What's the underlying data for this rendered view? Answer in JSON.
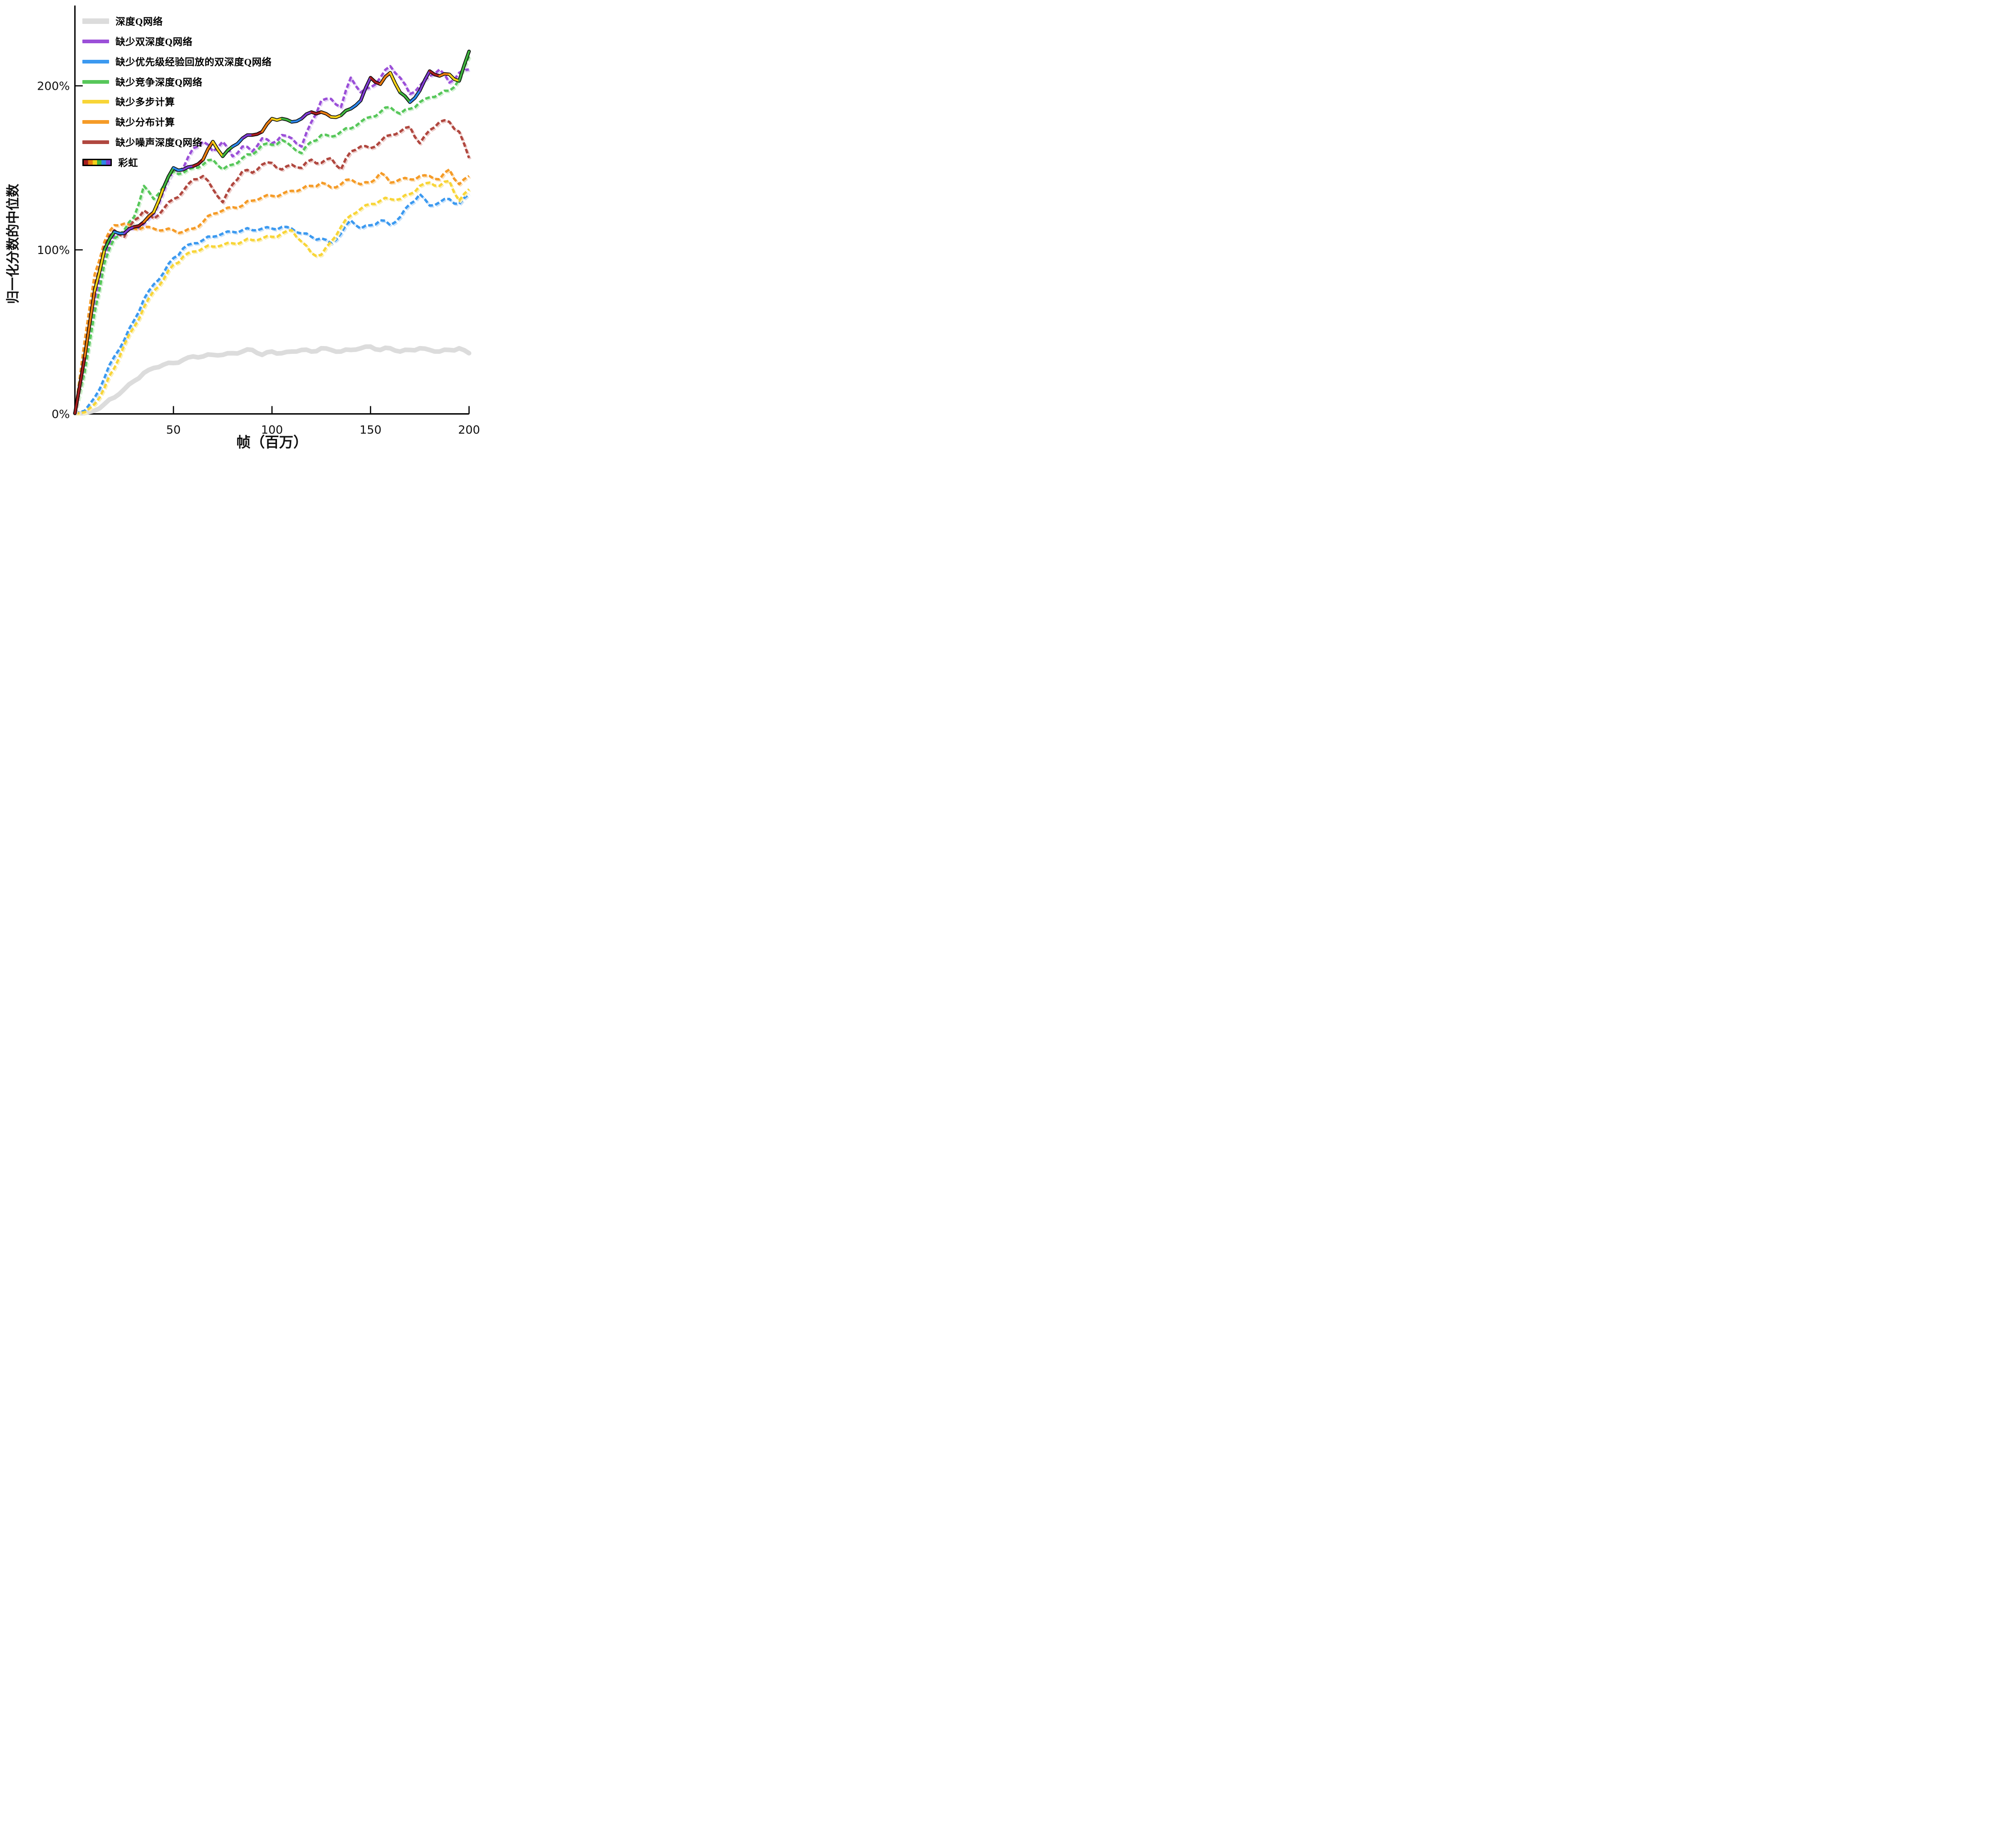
{
  "figure": {
    "background": "#ffffff",
    "axis_color": "#000000",
    "tick_label_color": "#111111"
  },
  "chart_data": {
    "type": "line",
    "title": "",
    "xlabel": "帧（百万）",
    "ylabel": "归一化分数的中位数",
    "xlim": [
      0,
      200
    ],
    "ylim": [
      0,
      240
    ],
    "grid": false,
    "legend_position": "upper-left",
    "xticks": [
      {
        "value": 50,
        "label": "50"
      },
      {
        "value": 100,
        "label": "100"
      },
      {
        "value": 150,
        "label": "150"
      },
      {
        "value": 200,
        "label": "200"
      }
    ],
    "yticks": [
      {
        "value": 0,
        "label": "0%"
      },
      {
        "value": 100,
        "label": "100%"
      },
      {
        "value": 200,
        "label": "200%"
      }
    ],
    "x": [
      0,
      5,
      10,
      15,
      20,
      25,
      30,
      35,
      40,
      45,
      50,
      55,
      60,
      65,
      70,
      75,
      80,
      85,
      90,
      95,
      100,
      105,
      110,
      115,
      120,
      125,
      130,
      135,
      140,
      145,
      150,
      155,
      160,
      165,
      170,
      175,
      180,
      185,
      190,
      195,
      200
    ],
    "rainbow_palette": [
      "#a61e1e",
      "#e87c10",
      "#f2d117",
      "#3fb33f",
      "#2e86e8",
      "#7e3bd0"
    ],
    "series": [
      {
        "key": "dqn",
        "name": "深度Q网络",
        "color": "#dcdcdc",
        "shadow": "#eeeeee",
        "style": "solid-thick",
        "values": [
          0,
          0.5,
          2,
          6,
          10,
          15,
          20,
          25,
          28,
          30,
          31,
          33,
          35,
          35,
          36,
          36,
          37,
          38,
          39,
          36,
          38,
          37,
          38,
          39,
          38,
          40,
          39,
          38,
          39,
          40,
          41,
          39,
          40,
          38,
          39,
          40,
          39,
          38,
          39,
          40,
          37
        ]
      },
      {
        "key": "no-double-dqn",
        "name": "缺少双深度Q网络",
        "color": "#9b4fd8",
        "shadow": "#e2d0f5",
        "style": "dashed",
        "values": [
          0,
          32,
          70,
          97,
          109,
          111,
          113,
          116,
          122,
          136,
          148,
          150,
          162,
          166,
          160,
          166,
          157,
          163,
          160,
          168,
          165,
          170,
          168,
          163,
          178,
          191,
          192,
          187,
          205,
          196,
          199,
          205,
          212,
          205,
          195,
          200,
          206,
          210,
          202,
          208,
          210
        ]
      },
      {
        "key": "no-prioritized-replay",
        "name": "缺少优先级经验回放的双深度Q网络",
        "color": "#3b99f0",
        "shadow": "#c9e2fa",
        "style": "dashed",
        "values": [
          0,
          2,
          10,
          22,
          35,
          45,
          57,
          70,
          79,
          86,
          95,
          101,
          104,
          106,
          108,
          110,
          111,
          112,
          112,
          113,
          113,
          114,
          113,
          110,
          108,
          107,
          104,
          110,
          118,
          113,
          115,
          118,
          115,
          120,
          128,
          134,
          127,
          129,
          131,
          128,
          134
        ]
      },
      {
        "key": "no-dueling",
        "name": "缺少竞争深度Q网络",
        "color": "#57c75a",
        "shadow": "#d2f0d2",
        "style": "dashed",
        "values": [
          0,
          26,
          62,
          92,
          107,
          112,
          120,
          139,
          131,
          139,
          148,
          147,
          150,
          152,
          155,
          149,
          152,
          156,
          158,
          164,
          164,
          167,
          163,
          159,
          166,
          170,
          169,
          172,
          174,
          178,
          181,
          184,
          187,
          183,
          186,
          190,
          193,
          195,
          197,
          204,
          218
        ]
      },
      {
        "key": "no-multi-step",
        "name": "缺少多步计算",
        "color": "#f8d537",
        "shadow": "#fbf0bc",
        "style": "dashed",
        "values": [
          0,
          1,
          6,
          16,
          28,
          42,
          53,
          65,
          75,
          82,
          91,
          96,
          99,
          101,
          102,
          103,
          104,
          105,
          106,
          107,
          108,
          110,
          112,
          105,
          98,
          97,
          105,
          114,
          121,
          125,
          128,
          130,
          131,
          131,
          134,
          139,
          141,
          139,
          142,
          130,
          137
        ]
      },
      {
        "key": "no-distributional",
        "name": "缺少分布计算",
        "color": "#f59b27",
        "shadow": "#fbe1bb",
        "style": "dashed",
        "values": [
          0,
          45,
          85,
          105,
          115,
          116,
          113,
          114,
          113,
          112,
          112,
          111,
          113,
          117,
          122,
          124,
          126,
          127,
          130,
          132,
          133,
          134,
          136,
          137,
          139,
          141,
          138,
          140,
          143,
          140,
          141,
          147,
          141,
          143,
          143,
          145,
          145,
          143,
          149,
          140,
          145
        ]
      },
      {
        "key": "no-noisy",
        "name": "缺少噪声深度Q网络",
        "color": "#b0473f",
        "shadow": "#ecccc9",
        "style": "dashed",
        "values": [
          0,
          38,
          78,
          102,
          112,
          108,
          118,
          124,
          119,
          125,
          131,
          136,
          143,
          145,
          137,
          129,
          140,
          148,
          147,
          152,
          153,
          149,
          152,
          150,
          155,
          153,
          156,
          149,
          160,
          163,
          162,
          166,
          170,
          172,
          175,
          165,
          173,
          178,
          178,
          172,
          156
        ]
      },
      {
        "key": "rainbow",
        "name": "彩虹",
        "color": "rainbow",
        "shadow": "#f3e3c8",
        "style": "rainbow",
        "values": [
          0,
          35,
          75,
          100,
          111,
          110,
          114,
          117,
          123,
          138,
          150,
          149,
          151,
          155,
          166,
          157,
          163,
          168,
          170,
          172,
          180,
          180,
          178,
          180,
          184,
          184,
          181,
          182,
          186,
          191,
          205,
          201,
          208,
          196,
          190,
          197,
          209,
          206,
          207,
          203,
          221
        ]
      }
    ]
  }
}
